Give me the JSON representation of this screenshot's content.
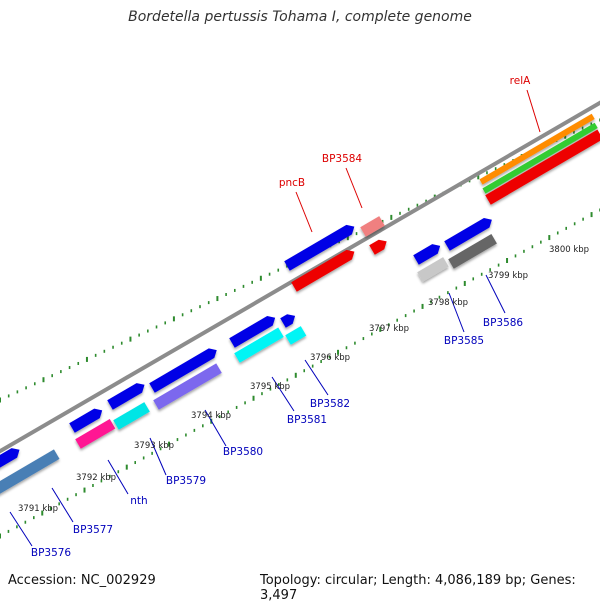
{
  "title": "Bordetella pertussis Tohama I, complete genome",
  "footer": {
    "accession": "Accession: NC_002929",
    "stats": "Topology: circular; Length: 4,086,189 bp; Genes: 3,497"
  },
  "colors": {
    "backbone": "#8c8c8c",
    "tick": "#2e8b2e",
    "label_red": "#dd0000",
    "label_blue": "#0000bb"
  },
  "ticks": [
    {
      "label": "3791 kbp"
    },
    {
      "label": "3792 kbp"
    },
    {
      "label": "3793 kbp"
    },
    {
      "label": "3794 kbp"
    },
    {
      "label": "3795 kbp"
    },
    {
      "label": "3796 kbp"
    },
    {
      "label": "3797 kbp"
    },
    {
      "label": "3798 kbp"
    },
    {
      "label": "3799 kbp"
    },
    {
      "label": "3800 kbp"
    }
  ],
  "gene_labels": [
    {
      "text": "relA",
      "color": "#dd0000"
    },
    {
      "text": "BP3584",
      "color": "#dd0000"
    },
    {
      "text": "pncB",
      "color": "#dd0000"
    },
    {
      "text": "BP3586",
      "color": "#0000bb"
    },
    {
      "text": "BP3585",
      "color": "#0000bb"
    },
    {
      "text": "BP3582",
      "color": "#0000bb"
    },
    {
      "text": "BP3581",
      "color": "#0000bb"
    },
    {
      "text": "BP3580",
      "color": "#0000bb"
    },
    {
      "text": "BP3579",
      "color": "#0000bb"
    },
    {
      "text": "nth",
      "color": "#0000bb"
    },
    {
      "text": "BP3577",
      "color": "#0000bb"
    },
    {
      "text": "BP3576",
      "color": "#0000bb"
    }
  ],
  "features": [
    {
      "name": "BP3576",
      "color": "#0000e6"
    },
    {
      "name": "BP3576-cog",
      "color": "#4a7fb5"
    },
    {
      "name": "BP3577",
      "color": "#0000e6"
    },
    {
      "name": "nth",
      "color": "#0000e6"
    },
    {
      "name": "nth-cog",
      "color": "#ff1493"
    },
    {
      "name": "BP3579",
      "color": "#0000e6"
    },
    {
      "name": "BP3579-cog",
      "color": "#00e5e5"
    },
    {
      "name": "BP3580",
      "color": "#0000e6"
    },
    {
      "name": "BP3580-cog",
      "color": "#7b68ee"
    },
    {
      "name": "BP3581",
      "color": "#0000e6"
    },
    {
      "name": "BP3581-cog",
      "color": "#00f5f5"
    },
    {
      "name": "BP3582",
      "color": "#0000e6"
    },
    {
      "name": "BP3582-cog",
      "color": "#00f5f5"
    },
    {
      "name": "pncB",
      "color": "#0000e6"
    },
    {
      "name": "pncB-cog",
      "color": "#ee0000"
    },
    {
      "name": "BP3584",
      "color": "#f08080"
    },
    {
      "name": "BP3584-cog",
      "color": "#ee0000"
    },
    {
      "name": "BP3585",
      "color": "#0000e6"
    },
    {
      "name": "BP3585-cog",
      "color": "#c8c8c8"
    },
    {
      "name": "BP3586",
      "color": "#0000e6"
    },
    {
      "name": "BP3586-cog",
      "color": "#666666"
    },
    {
      "name": "relA-orange",
      "color": "#ff8c00"
    },
    {
      "name": "relA-green",
      "color": "#33cc33"
    },
    {
      "name": "relA",
      "color": "#ee0000"
    },
    {
      "name": "relA-cog",
      "color": "#ee0000"
    }
  ]
}
